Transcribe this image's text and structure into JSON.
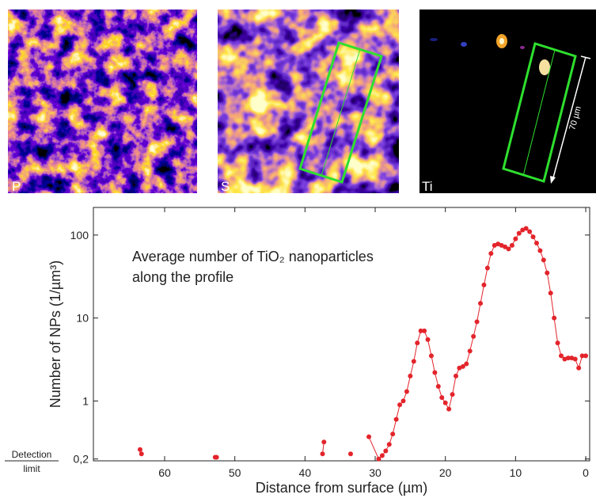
{
  "panels": [
    {
      "label": "P"
    },
    {
      "label": "S"
    },
    {
      "label": "Ti"
    }
  ],
  "scale_bar": "70 µm",
  "chart_data": {
    "type": "line",
    "x_label": "Distance from surface (µm)",
    "y_label": "Number of NPs (1/µm³)",
    "annotation": [
      "Average number of TiO₂ nanoparticles",
      "along the profile"
    ],
    "detection_label": [
      "Detection",
      "limit"
    ],
    "log_y": true,
    "color": "#e3242b",
    "xlim": [
      70.15,
      -0.56
    ],
    "xticks": [
      60,
      50,
      40,
      30,
      20,
      10,
      0
    ],
    "ylim": [
      0.19,
      215
    ],
    "yticks": [
      {
        "value": 0.2,
        "label": "0,2"
      },
      1,
      10,
      100
    ],
    "x": [
      63.5,
      63.3,
      null,
      52.8,
      52.6,
      null,
      37.3,
      37.5,
      null,
      33.5,
      null,
      30.9,
      29.5,
      29,
      28.5,
      28,
      27.5,
      27,
      26.5,
      26,
      25.5,
      25,
      24.5,
      24,
      23.5,
      23,
      22.5,
      22,
      21.5,
      21,
      20.5,
      20,
      19.5,
      19,
      18.5,
      18,
      17.5,
      17,
      16.5,
      16,
      15.5,
      15,
      14.5,
      14,
      13.5,
      13,
      12.5,
      12,
      11.5,
      11,
      10.5,
      10,
      9.5,
      9,
      8.5,
      8,
      7.5,
      7,
      6.5,
      6,
      5.5,
      5,
      4.5,
      4,
      3.5,
      3,
      2.5,
      2,
      1.5,
      1,
      0.5,
      0
    ],
    "values": [
      0.26,
      0.23,
      null,
      0.21,
      0.21,
      null,
      0.32,
      0.23,
      null,
      0.23,
      null,
      0.37,
      0.2,
      0.22,
      0.25,
      0.3,
      0.4,
      0.6,
      0.9,
      1.0,
      1.3,
      2,
      3,
      5,
      7,
      7,
      5.5,
      3.5,
      2.2,
      1.5,
      1.1,
      0.95,
      0.8,
      1.2,
      2,
      2.5,
      2.6,
      2.8,
      4,
      6,
      9,
      15,
      25,
      40,
      60,
      75,
      78,
      75,
      72,
      68,
      75,
      90,
      105,
      115,
      120,
      110,
      95,
      80,
      65,
      50,
      35,
      20,
      10,
      5,
      3.5,
      3.2,
      3.3,
      3.3,
      3.2,
      2.5,
      3.5,
      3.5
    ]
  }
}
